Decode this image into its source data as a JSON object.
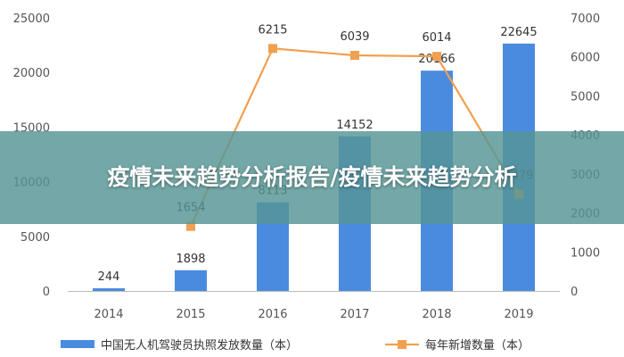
{
  "colors": {
    "bar": "#4a8be0",
    "line": "#f0a050",
    "axis": "#bdbdbd",
    "overlay": "#569595",
    "text": "#333333"
  },
  "overlay": {
    "title": "疫情未来趋势分析报告/疫情未来趋势分析"
  },
  "chart_data": {
    "type": "bar+line",
    "categories": [
      "2014",
      "2015",
      "2016",
      "2017",
      "2018",
      "2019"
    ],
    "series": [
      {
        "name": "中国无人机驾驶员执照发放数量（本）",
        "type": "bar",
        "axis": "left",
        "values": [
          244,
          1898,
          8113,
          14152,
          20166,
          22645
        ],
        "labels": [
          "244",
          "1898",
          "8113",
          "14152",
          "20166",
          "22645"
        ]
      },
      {
        "name": "每年新增数量（本）",
        "type": "line",
        "axis": "right",
        "values": [
          null,
          1654,
          6215,
          6039,
          6014,
          2479
        ],
        "labels": [
          "",
          "1654",
          "6215",
          "6039",
          "6014",
          "2479"
        ]
      }
    ],
    "y_left": {
      "ylim": [
        0,
        25000
      ],
      "ticks": [
        "0",
        "5000",
        "10000",
        "15000",
        "20000",
        "25000"
      ]
    },
    "y_right": {
      "ylim": [
        0,
        7000
      ],
      "ticks": [
        "0",
        "1000",
        "2000",
        "3000",
        "4000",
        "5000",
        "6000",
        "7000"
      ]
    },
    "grid": false,
    "legend_position": "bottom"
  }
}
